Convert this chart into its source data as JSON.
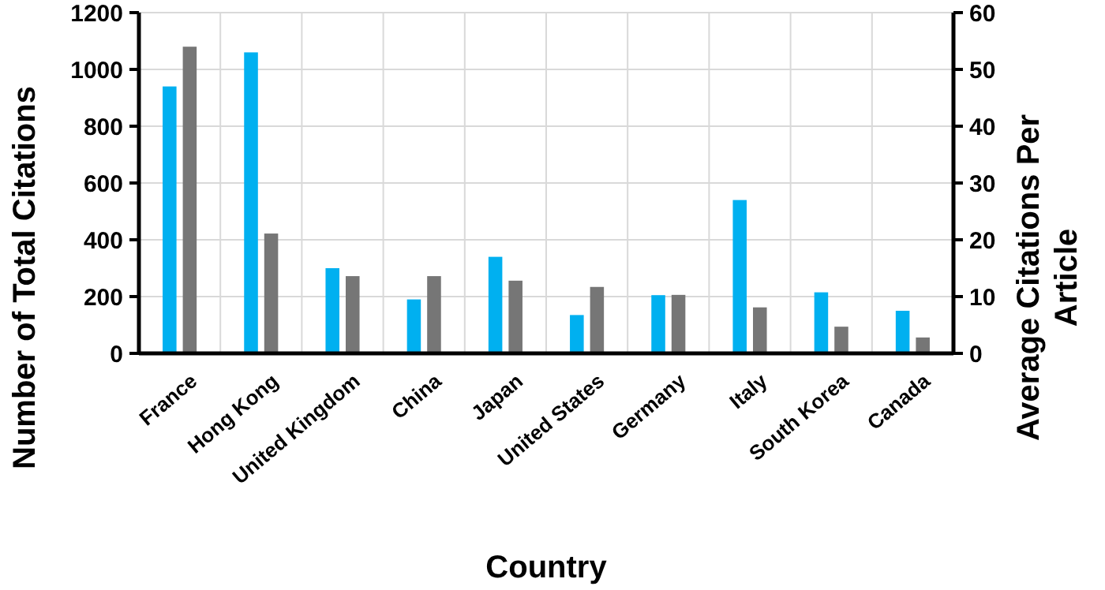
{
  "chart_data": {
    "type": "bar",
    "xlabel": "Country",
    "ylabel": "Number of Total Citations",
    "y2label": "Average Citations Per Article",
    "categories": [
      "France",
      "Hong Kong",
      "United Kingdom",
      "China",
      "Japan",
      "United States",
      "Germany",
      "Italy",
      "South Korea",
      "Canada"
    ],
    "series": [
      {
        "color": "#00b0f0",
        "values": [
          940,
          1060,
          300,
          190,
          340,
          135,
          205,
          540,
          215,
          150
        ]
      },
      {
        "color": "#767676",
        "axis": "y2",
        "values": [
          54,
          21.1,
          13.6,
          13.6,
          12.8,
          11.7,
          10.3,
          8.1,
          4.7,
          2.8
        ]
      }
    ],
    "ylim": [
      0,
      1200
    ],
    "yticks": [
      0,
      200,
      400,
      600,
      800,
      1000,
      1200
    ],
    "y2lim": [
      0,
      60
    ],
    "y2ticks": [
      0,
      10,
      20,
      30,
      40,
      50,
      60
    ],
    "grid": true
  }
}
